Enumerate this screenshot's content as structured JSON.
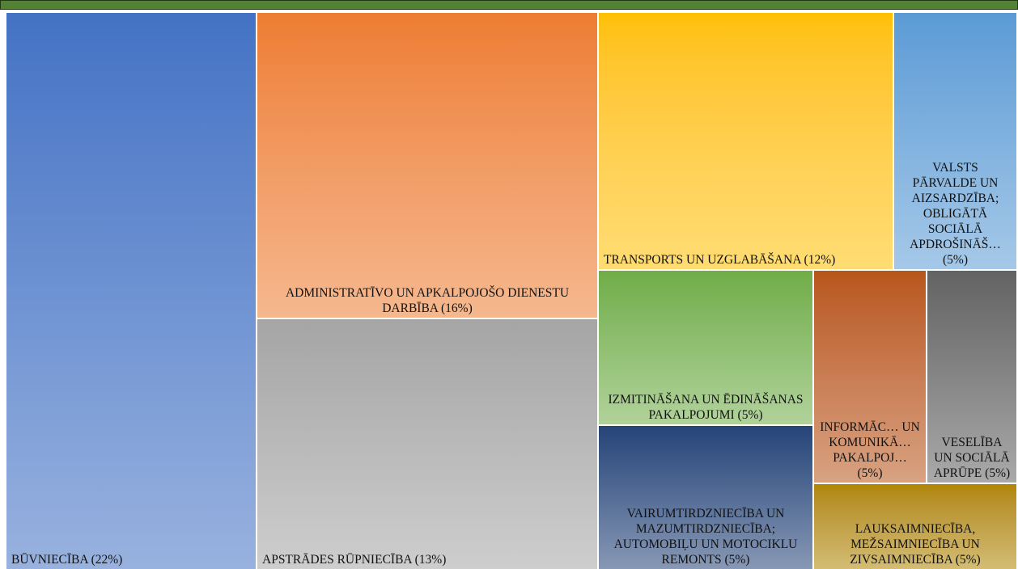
{
  "chart_data": {
    "type": "treemap",
    "categories": [
      "BŪVNIECĪBA",
      "ADMINISTRATĪVO UN APKALPOJOŠO DIENESTU DARBĪBA",
      "APSTRĀDES RŪPNIECĪBA",
      "TRANSPORTS UN UZGLABĀŠANA",
      "VALSTS PĀRVALDE UN AIZSARDZĪBA; OBLIGĀTĀ SOCIĀLĀ APDROŠINĀŠ…",
      "IZMITINĀŠANA UN ĒDINĀŠANAS PAKALPOJUMI",
      "VAIRUMTIRDZNIECĪBA UN MAZUMTIRDZNIECĪBA; AUTOMOBIĻU UN MOTOCIKLU REMONTS",
      "INFORMĀC… UN KOMUNIKĀ… PAKALPOJ…",
      "VESELĪBA UN SOCIĀLĀ APRŪPE",
      "LAUKSAIMNIECĪBA, MEŽSAIMNIECĪBA UN ZIVSAIMNIECĪBA"
    ],
    "values": [
      22,
      16,
      13,
      12,
      5,
      5,
      5,
      5,
      5,
      5
    ],
    "value_labels": [
      "(22%)",
      "(16%)",
      "(13%)",
      "(12%)",
      "(5%)",
      "(5%)",
      "(5%)",
      "(5%)",
      "(5%)",
      "(5%)"
    ],
    "colors": [
      "#4472c4",
      "#ed7d31",
      "#a5a5a5",
      "#ffc000",
      "#5b9bd5",
      "#70ad47",
      "#264478",
      "#b8561a",
      "#636363",
      "#b08600"
    ]
  }
}
